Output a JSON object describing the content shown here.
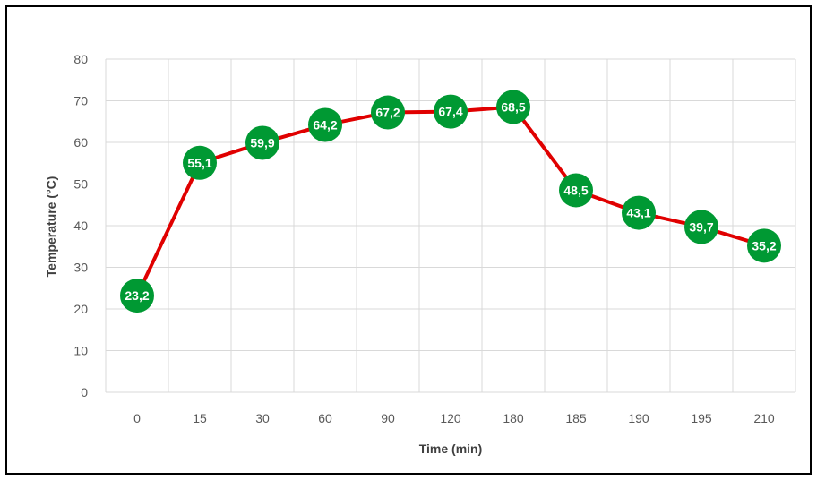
{
  "chart_data": {
    "type": "line",
    "categories": [
      "0",
      "15",
      "30",
      "60",
      "90",
      "120",
      "180",
      "185",
      "190",
      "195",
      "210"
    ],
    "series": [
      {
        "values": [
          23.2,
          55.1,
          59.9,
          64.2,
          67.2,
          67.4,
          68.5,
          48.5,
          43.1,
          39.7,
          35.2
        ],
        "labels": [
          "23,2",
          "55,1",
          "59,9",
          "64,2",
          "67,2",
          "67,4",
          "68,5",
          "48,5",
          "43,1",
          "39,7",
          "35,2"
        ],
        "line_color": "#e00000",
        "marker_color": "#009933"
      }
    ],
    "xlabel": "Time (min)",
    "ylabel": "Temperature (°C)",
    "ylim": [
      0,
      80
    ],
    "yticks": [
      "0",
      "10",
      "20",
      "30",
      "40",
      "50",
      "60",
      "70",
      "80"
    ],
    "grid": true,
    "legend": "none"
  },
  "colors": {
    "gridline": "#d9d9d9",
    "axis_text": "#595959",
    "frame": "#000000"
  }
}
